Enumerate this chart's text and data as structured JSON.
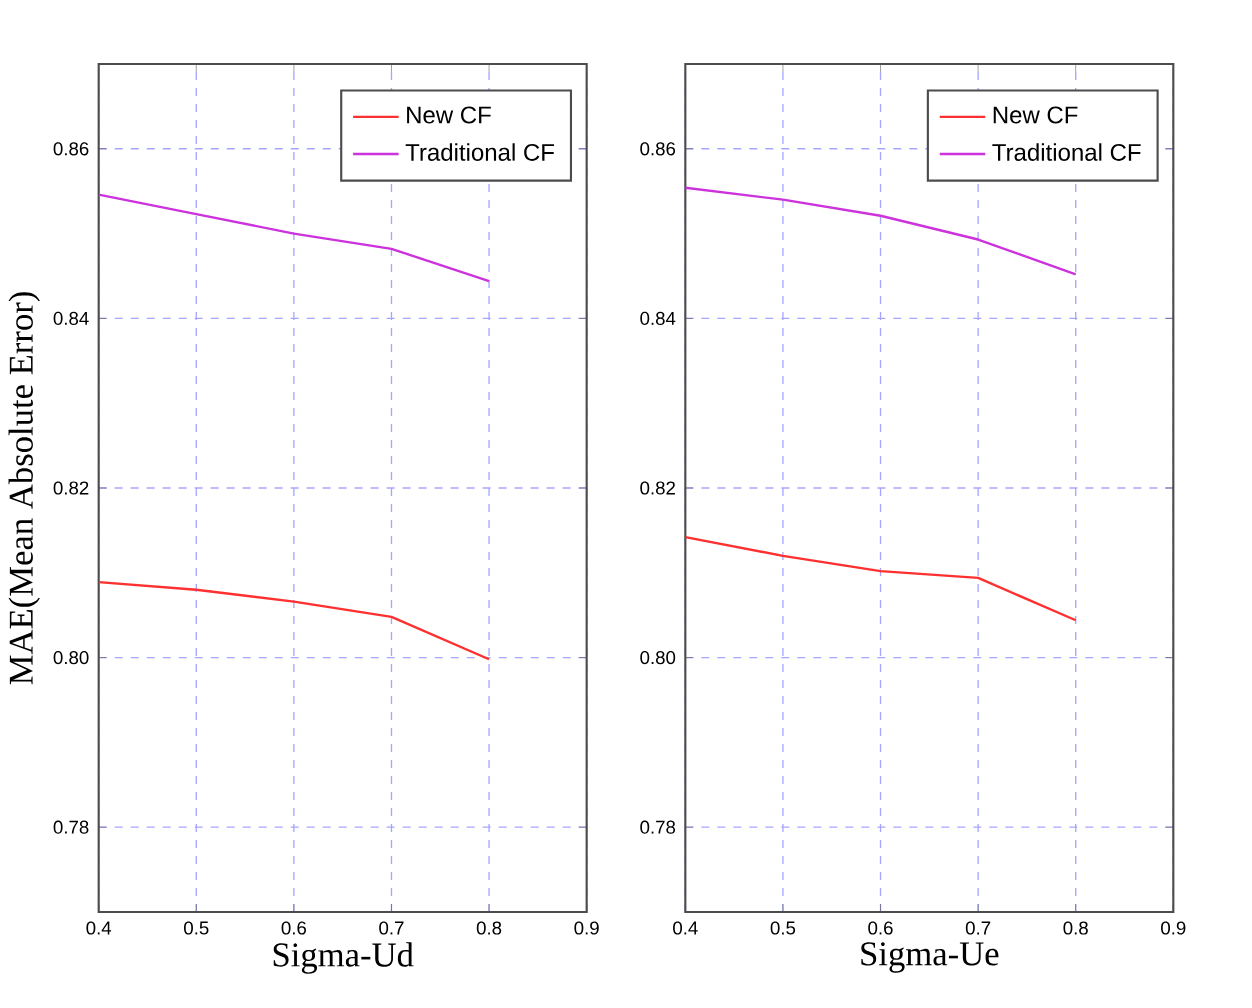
{
  "chart_data": [
    {
      "type": "line",
      "xlabel": "Sigma-Ud",
      "ylabel": "MAE(Mean Absolute Error)",
      "x": [
        0.4,
        0.5,
        0.6,
        0.7,
        0.8
      ],
      "series": [
        {
          "name": "New CF",
          "color": "#ff3030",
          "values": [
            0.8089,
            0.808,
            0.8066,
            0.8048,
            0.7998
          ]
        },
        {
          "name": "Traditional CF",
          "color": "#cc33dd",
          "values": [
            0.8546,
            0.8523,
            0.85,
            0.8482,
            0.8444
          ]
        }
      ],
      "xlim": [
        0.4,
        0.9
      ],
      "xticks": [
        0.4,
        0.5,
        0.6,
        0.7,
        0.8,
        0.9
      ],
      "ylim": [
        0.77,
        0.87
      ],
      "yticks": [
        {
          "value": 0.78,
          "label": "0.78"
        },
        {
          "value": 0.8,
          "label": "0.80"
        },
        {
          "value": 0.82,
          "label": "0.82"
        },
        {
          "value": 0.84,
          "label": "0.84"
        },
        {
          "value": 0.86,
          "label": "0.86"
        }
      ],
      "grid": true,
      "legend": "top right"
    },
    {
      "type": "line",
      "xlabel": "Sigma-Ue",
      "x": [
        0.4,
        0.5,
        0.6,
        0.7,
        0.8
      ],
      "series": [
        {
          "name": "New CF",
          "color": "#ff3030",
          "values": [
            0.8142,
            0.812,
            0.8102,
            0.8094,
            0.8044
          ]
        },
        {
          "name": "Traditional CF",
          "color": "#cc33dd",
          "values": [
            0.8554,
            0.854,
            0.8521,
            0.8493,
            0.8452
          ]
        }
      ],
      "xlim": [
        0.4,
        0.9
      ],
      "xticks": [
        0.4,
        0.5,
        0.6,
        0.7,
        0.8,
        0.9
      ],
      "ylim": [
        0.77,
        0.87
      ],
      "yticks": [
        {
          "value": 0.78,
          "label": "0.78"
        },
        {
          "value": 0.8,
          "label": "0.80"
        },
        {
          "value": 0.82,
          "label": "0.82"
        },
        {
          "value": 0.84,
          "label": "0.84"
        },
        {
          "value": 0.86,
          "label": "0.86"
        }
      ],
      "grid": true,
      "legend": "top right"
    }
  ]
}
